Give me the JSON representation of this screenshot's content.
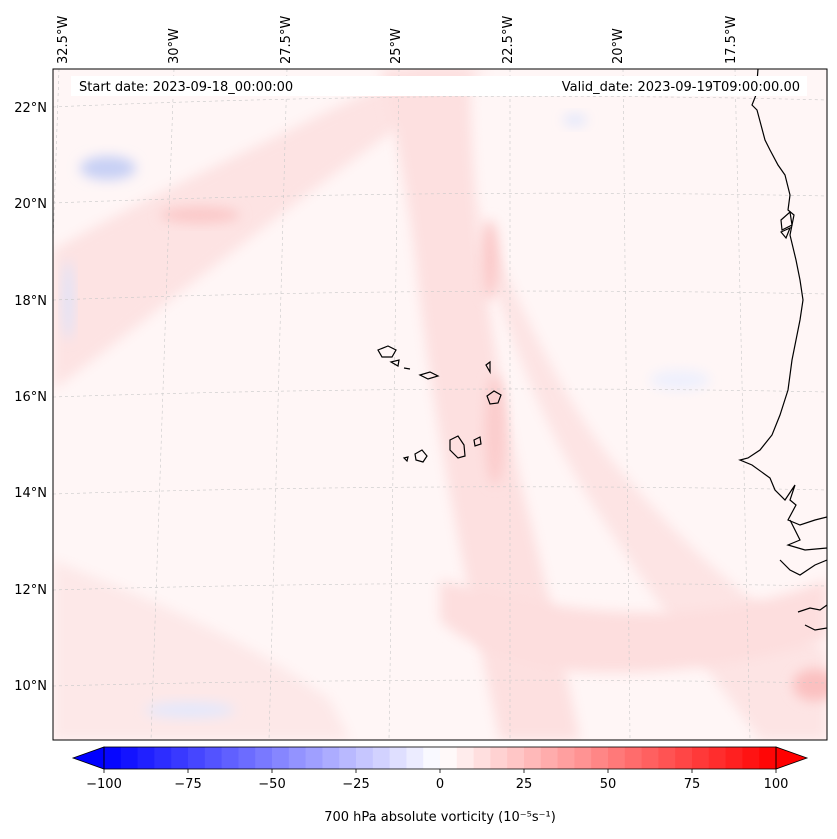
{
  "header": {
    "start_date": "Start date: 2023-09-18_00:00:00",
    "valid_date": "Valid_date: 2023-09-19T09:00:00.00"
  },
  "map": {
    "projection": "lambert-conformal",
    "gridlines": true,
    "lon_labels": [
      "32.5°W",
      "30°W",
      "27.5°W",
      "25°W",
      "22.5°W",
      "20°W",
      "17.5°W"
    ],
    "lat_labels": [
      "22°N",
      "20°N",
      "18°N",
      "16°N",
      "14°N",
      "12°N",
      "10°N"
    ],
    "field": "700 hPa absolute vorticity",
    "field_dominant": "weak positive (light red) over most of the domain; weak negative patches near 32°W 21°N and along the western edge"
  },
  "colorbar": {
    "label": "700 hPa absolute vorticity (10⁻⁵s⁻¹)",
    "ticks": [
      "−100",
      "−75",
      "−50",
      "−25",
      "0",
      "25",
      "50",
      "75",
      "100"
    ],
    "min": -100,
    "max": 100,
    "cmap": "bwr",
    "extend": "both",
    "low_color": "#0000ff",
    "mid_color": "#ffffff",
    "high_color": "#ff0000"
  }
}
